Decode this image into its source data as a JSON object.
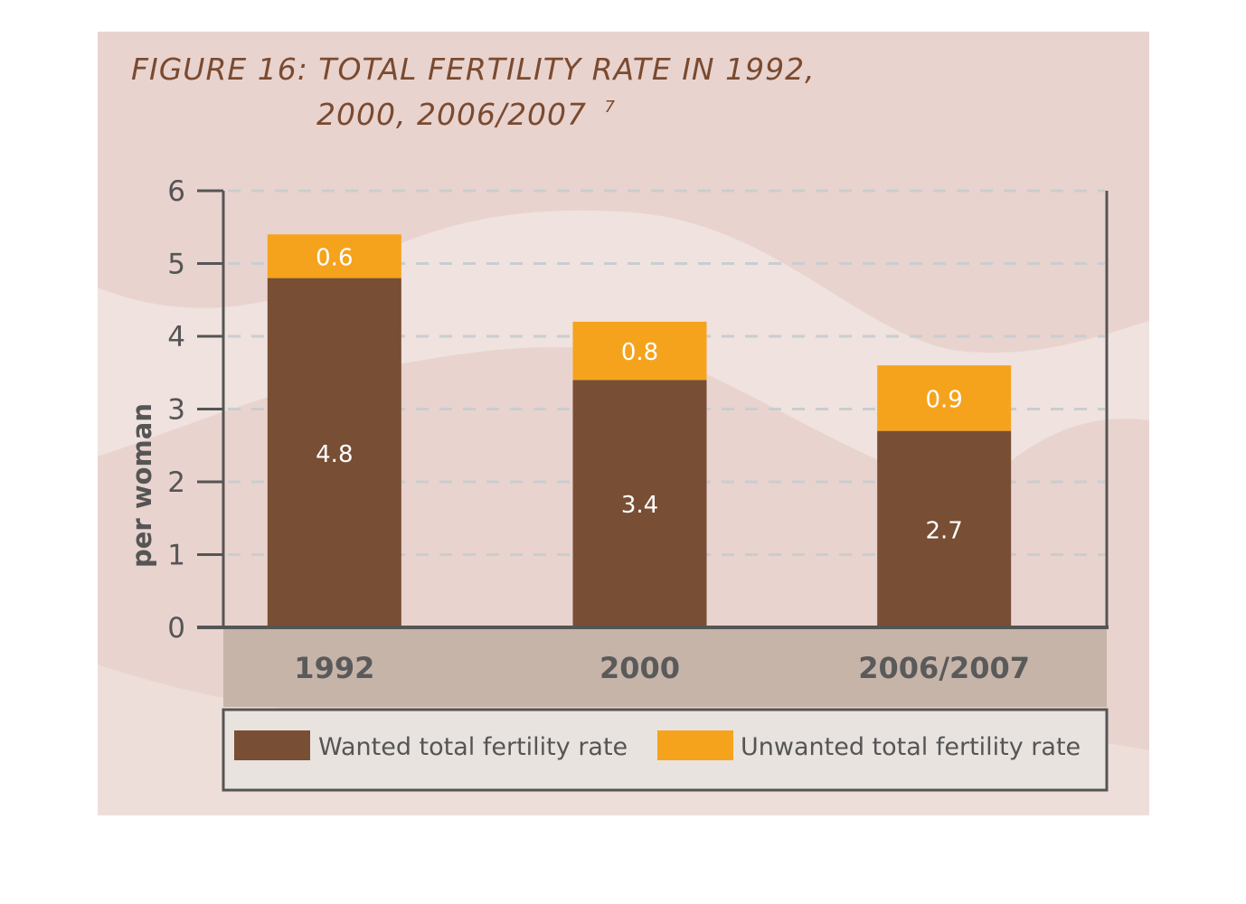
{
  "figure": {
    "title_line1": "FIGURE 16: TOTAL FERTILITY RATE IN 1992,",
    "title_line2": "2000, 2006/2007",
    "footnote_mark": "7"
  },
  "colors": {
    "background": "#e9d3ce",
    "wave_light": "#efe2df",
    "wanted": "#784e34",
    "unwanted": "#f5a31d",
    "category_band": "#c6b4a9",
    "legend_box": "#e8e3df",
    "axis": "#555555",
    "grid": "#c9cdd0"
  },
  "chart_data": {
    "type": "bar",
    "stacked": true,
    "categories": [
      "1992",
      "2000",
      "2006/2007"
    ],
    "series": [
      {
        "name": "Wanted total fertility rate",
        "color": "#784e34",
        "values": [
          4.8,
          3.4,
          2.7
        ],
        "labels": [
          "4.8",
          "3.4",
          "2.7"
        ]
      },
      {
        "name": "Unwanted total fertility rate",
        "color": "#f5a31d",
        "values": [
          0.6,
          0.8,
          0.9
        ],
        "labels": [
          "0.6",
          "0.8",
          "0.9"
        ]
      }
    ],
    "ylabel": "per woman",
    "ylim": [
      0,
      6
    ],
    "yticks": [
      "0",
      "1",
      "2",
      "3",
      "4",
      "5",
      "6"
    ],
    "grid": true,
    "legend_position": "bottom"
  }
}
